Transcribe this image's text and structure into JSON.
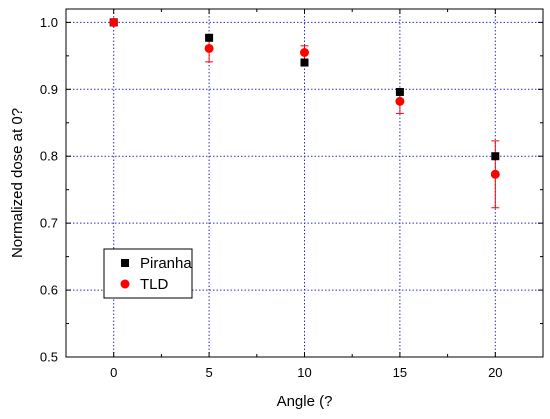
{
  "chart_data": {
    "type": "scatter",
    "title": "",
    "xlabel": "Angle (?",
    "ylabel": "Normalized dose at 0?",
    "xlim": [
      -2.5,
      22.5
    ],
    "ylim": [
      0.5,
      1.02
    ],
    "xticks": [
      0,
      5,
      10,
      15,
      20
    ],
    "yticks": [
      0.5,
      0.6,
      0.7,
      0.8,
      0.9,
      1.0
    ],
    "xtick_labels": [
      "0",
      "5",
      "10",
      "15",
      "20"
    ],
    "ytick_labels": [
      "0.5",
      "0.6",
      "0.7",
      "0.8",
      "0.9",
      "1.0"
    ],
    "grid": true,
    "legend_position": "bottom-left",
    "series": [
      {
        "name": "Piranha",
        "marker": "square",
        "color": "#000000",
        "x": [
          0,
          5,
          10,
          15,
          20
        ],
        "y": [
          1.0,
          0.977,
          0.94,
          0.896,
          0.8
        ]
      },
      {
        "name": "TLD",
        "marker": "circle",
        "color": "#ff0000",
        "x": [
          0,
          5,
          10,
          15,
          20
        ],
        "y": [
          1.0,
          0.961,
          0.955,
          0.882,
          0.773
        ],
        "yerr": [
          0,
          0.02,
          0.01,
          0.018,
          0.05
        ]
      }
    ]
  }
}
